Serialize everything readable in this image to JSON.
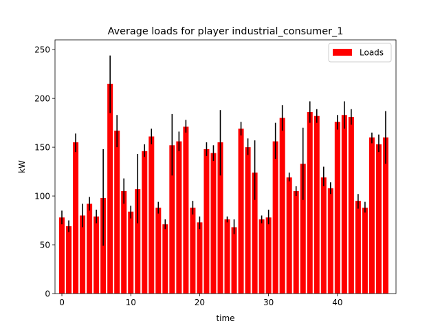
{
  "chart_data": {
    "type": "bar",
    "title": "Average loads for player industrial_consumer_1",
    "xlabel": "time",
    "ylabel": "kW",
    "xlim": [
      -1,
      48.5
    ],
    "ylim": [
      0,
      260
    ],
    "xticks": [
      0,
      10,
      20,
      30,
      40
    ],
    "yticks": [
      0,
      50,
      100,
      150,
      200,
      250
    ],
    "grid": false,
    "legend": {
      "position": "top-right",
      "entries": [
        "Loads"
      ]
    },
    "bar_color": "#ff0000",
    "error_color": "#000000",
    "series": [
      {
        "name": "Loads",
        "x": [
          0,
          1,
          2,
          3,
          4,
          5,
          6,
          7,
          8,
          9,
          10,
          11,
          12,
          13,
          14,
          15,
          16,
          17,
          18,
          19,
          20,
          21,
          22,
          23,
          24,
          25,
          26,
          27,
          28,
          29,
          30,
          31,
          32,
          33,
          34,
          35,
          36,
          37,
          38,
          39,
          40,
          41,
          42,
          43,
          44,
          45,
          46,
          47
        ],
        "values": [
          78,
          69,
          155,
          80,
          92,
          79,
          98,
          215,
          167,
          105,
          84,
          107,
          146,
          161,
          88,
          71,
          152,
          156,
          171,
          88,
          73,
          148,
          144,
          155,
          76,
          68,
          169,
          150,
          124,
          76,
          78,
          156,
          180,
          119,
          105,
          133,
          186,
          182,
          119,
          108,
          176,
          183,
          181,
          95,
          88,
          160,
          153,
          160
        ],
        "error_low": [
          71,
          63,
          145,
          68,
          85,
          72,
          49,
          185,
          150,
          92,
          77,
          72,
          140,
          153,
          82,
          66,
          121,
          146,
          165,
          81,
          66,
          141,
          136,
          121,
          73,
          61,
          162,
          142,
          96,
          72,
          71,
          138,
          167,
          115,
          100,
          96,
          175,
          175,
          110,
          102,
          168,
          169,
          173,
          87,
          83,
          154,
          145,
          133
        ],
        "error_high": [
          85,
          75,
          164,
          92,
          99,
          86,
          148,
          244,
          183,
          118,
          90,
          143,
          153,
          169,
          94,
          76,
          184,
          166,
          178,
          95,
          79,
          155,
          152,
          188,
          79,
          76,
          176,
          159,
          157,
          80,
          86,
          175,
          193,
          124,
          110,
          170,
          197,
          189,
          130,
          114,
          183,
          197,
          189,
          102,
          94,
          165,
          163,
          187
        ]
      }
    ]
  }
}
